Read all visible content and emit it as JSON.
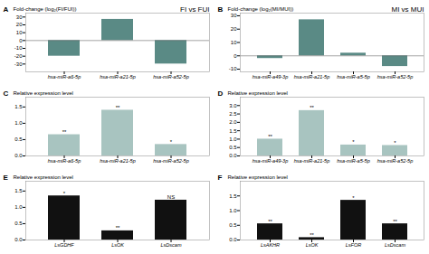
{
  "chart_data": [
    {
      "type": "bar",
      "panel_label": "A",
      "title": "FI vs FUI",
      "categories": [
        "hsa-miR-a6-5p",
        "hsa-miR-a21-5p",
        "hsa-miR-a52-5p"
      ],
      "values": [
        -20,
        27,
        -30
      ],
      "color": "#5a8a85",
      "ylabel": "Fold-change (log₂(FI/FUI))",
      "ylim": [
        -40,
        35
      ],
      "yticks": [
        -30,
        -20,
        -10,
        0,
        10,
        20,
        30
      ]
    },
    {
      "type": "bar",
      "panel_label": "B",
      "title": "MI vs MUI",
      "categories": [
        "hsa-miR-a49-3p",
        "hsa-miR-a21-5p",
        "hsa-miR-a5-5p",
        "hsa-miR-a52-5p"
      ],
      "values": [
        -2,
        27,
        2,
        -8
      ],
      "color": "#5a8a85",
      "ylabel": "Fold-change (log₂(MI/MUI))",
      "ylim": [
        -12,
        32
      ],
      "yticks": [
        -10,
        0,
        10,
        20,
        30
      ]
    },
    {
      "type": "bar",
      "panel_label": "C",
      "categories": [
        "hsa-miR-a6-5p",
        "hsa-miR-a21-5p",
        "hsa-miR-a52-5p"
      ],
      "values": [
        0.65,
        1.4,
        0.35
      ],
      "color": "#a8c4c0",
      "annotations": [
        "**",
        "**",
        "*"
      ],
      "ylabel": "Relative expression level",
      "ylim": [
        0,
        1.8
      ],
      "yticks": [
        {
          "value": 0,
          "label": "0.0"
        },
        0.5,
        {
          "value": 1,
          "label": "1.0"
        },
        1.5
      ]
    },
    {
      "type": "bar",
      "panel_label": "D",
      "categories": [
        "hsa-miR-a49-3p",
        "hsa-miR-a21-5p",
        "hsa-miR-a5-5p",
        "hsa-miR-a52-5p"
      ],
      "values": [
        1.0,
        2.7,
        0.65,
        0.62
      ],
      "color": "#a8c4c0",
      "annotations": [
        "**",
        "**",
        "*",
        "*"
      ],
      "ylabel": "Relative expression level",
      "ylim": [
        0,
        3.5
      ],
      "yticks": [
        {
          "value": 0,
          "label": "0.0"
        },
        0.5,
        {
          "value": 1,
          "label": "1.0"
        },
        1.5,
        {
          "value": 2,
          "label": "2.0"
        },
        2.5,
        {
          "value": 3,
          "label": "3.0"
        }
      ]
    },
    {
      "type": "bar",
      "panel_label": "E",
      "categories": [
        "LsGDHF",
        "LsOK",
        "LsDscam"
      ],
      "values": [
        1.35,
        0.28,
        1.22
      ],
      "color": "#111111",
      "annotations": [
        "*",
        "**",
        "NS"
      ],
      "ylabel": "Relative expression level",
      "ylim": [
        0,
        1.8
      ],
      "yticks": [
        {
          "value": 0,
          "label": "0.0"
        },
        0.5,
        {
          "value": 1,
          "label": "1.0"
        },
        1.5
      ]
    },
    {
      "type": "bar",
      "panel_label": "F",
      "categories": [
        "LsAKHR",
        "LsOK",
        "LsFOR",
        "LsDscam"
      ],
      "values": [
        0.55,
        0.08,
        1.35,
        0.55
      ],
      "color": "#111111",
      "annotations": [
        "**",
        "**",
        "*",
        "**"
      ],
      "ylabel": "Relative expression level",
      "ylim": [
        0,
        2.0
      ],
      "yticks": [
        {
          "value": 0,
          "label": "0.0"
        },
        0.5,
        {
          "value": 1,
          "label": "1.0"
        },
        1.5
      ]
    }
  ]
}
